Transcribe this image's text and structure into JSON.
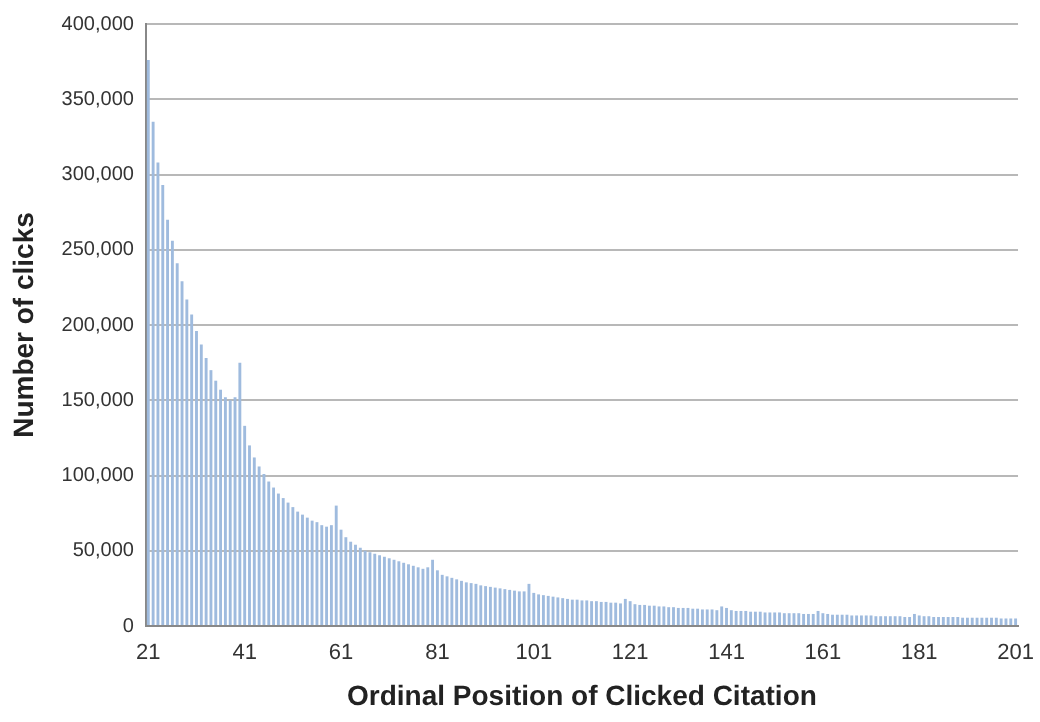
{
  "chart_data": {
    "type": "bar",
    "xlabel": "Ordinal Position of Clicked Citation",
    "ylabel": "Number of clicks",
    "categories": [
      "21",
      null,
      null,
      null,
      null,
      null,
      null,
      null,
      null,
      null,
      null,
      null,
      null,
      null,
      null,
      null,
      null,
      null,
      null,
      null,
      "41",
      null,
      null,
      null,
      null,
      null,
      null,
      null,
      null,
      null,
      null,
      null,
      null,
      null,
      null,
      null,
      null,
      null,
      null,
      null,
      "61",
      null,
      null,
      null,
      null,
      null,
      null,
      null,
      null,
      null,
      null,
      null,
      null,
      null,
      null,
      null,
      null,
      null,
      null,
      null,
      "81",
      null,
      null,
      null,
      null,
      null,
      null,
      null,
      null,
      null,
      null,
      null,
      null,
      null,
      null,
      null,
      null,
      null,
      null,
      null,
      "101",
      null,
      null,
      null,
      null,
      null,
      null,
      null,
      null,
      null,
      null,
      null,
      null,
      null,
      null,
      null,
      null,
      null,
      null,
      null,
      "121",
      null,
      null,
      null,
      null,
      null,
      null,
      null,
      null,
      null,
      null,
      null,
      null,
      null,
      null,
      null,
      null,
      null,
      null,
      null,
      "141",
      null,
      null,
      null,
      null,
      null,
      null,
      null,
      null,
      null,
      null,
      null,
      null,
      null,
      null,
      null,
      null,
      null,
      null,
      null,
      "161",
      null,
      null,
      null,
      null,
      null,
      null,
      null,
      null,
      null,
      null,
      null,
      null,
      null,
      null,
      null,
      null,
      null,
      null,
      null,
      "181",
      null,
      null,
      null,
      null,
      null,
      null,
      null,
      null,
      null,
      null,
      null,
      null,
      null,
      null,
      null,
      null,
      null,
      null,
      null,
      "201"
    ],
    "values": [
      376000,
      335000,
      308000,
      293000,
      270000,
      256000,
      241000,
      229000,
      217000,
      207000,
      196000,
      187000,
      178000,
      170000,
      163000,
      157000,
      152000,
      150000,
      152000,
      175000,
      133000,
      120000,
      112000,
      106000,
      101000,
      96000,
      92000,
      88000,
      85000,
      82000,
      79000,
      76000,
      74000,
      72000,
      70000,
      69000,
      67000,
      66000,
      67000,
      80000,
      64000,
      59000,
      56000,
      54000,
      52000,
      50000,
      49000,
      48000,
      47000,
      46000,
      45000,
      44000,
      43000,
      42000,
      41000,
      40000,
      39000,
      38000,
      39000,
      44000,
      37000,
      34000,
      33000,
      32000,
      31000,
      30000,
      29000,
      28500,
      28000,
      27000,
      26500,
      26000,
      25500,
      25000,
      24500,
      24000,
      23500,
      23000,
      23000,
      28000,
      22000,
      21000,
      20500,
      20000,
      19500,
      19000,
      18500,
      18000,
      17500,
      17500,
      17000,
      17000,
      16500,
      16500,
      16000,
      16000,
      15500,
      15500,
      15000,
      18000,
      16500,
      14500,
      14000,
      14000,
      13500,
      13500,
      13000,
      13000,
      12500,
      12500,
      12000,
      12000,
      12000,
      11500,
      11500,
      11000,
      11000,
      11000,
      10500,
      13000,
      12000,
      10500,
      10000,
      10000,
      10000,
      9500,
      9500,
      9500,
      9000,
      9000,
      9000,
      9000,
      8500,
      8500,
      8500,
      8500,
      8000,
      8000,
      8000,
      10000,
      8500,
      8000,
      7500,
      7500,
      7500,
      7500,
      7000,
      7000,
      7000,
      7000,
      7000,
      6500,
      6500,
      6500,
      6500,
      6500,
      6500,
      6000,
      6000,
      8000,
      7000,
      6500,
      6500,
      6000,
      6000,
      6000,
      6000,
      6000,
      6000,
      5500,
      5500,
      5500,
      5500,
      5500,
      5500,
      5500,
      5500,
      5000,
      5000,
      5000,
      5000
    ],
    "color": "#9fbbde",
    "ylim": [
      0,
      400000
    ],
    "yticks": [
      0,
      {
        "value": 50000,
        "label": "50,000"
      },
      {
        "value": 100000,
        "label": "100,000"
      },
      {
        "value": 150000,
        "label": "150,000"
      },
      {
        "value": 200000,
        "label": "200,000"
      },
      {
        "value": 250000,
        "label": "250,000"
      },
      {
        "value": 300000,
        "label": "300,000"
      },
      {
        "value": 350000,
        "label": "350,000"
      },
      {
        "value": 400000,
        "label": "400,000"
      }
    ],
    "grid": "y",
    "legend": false
  }
}
